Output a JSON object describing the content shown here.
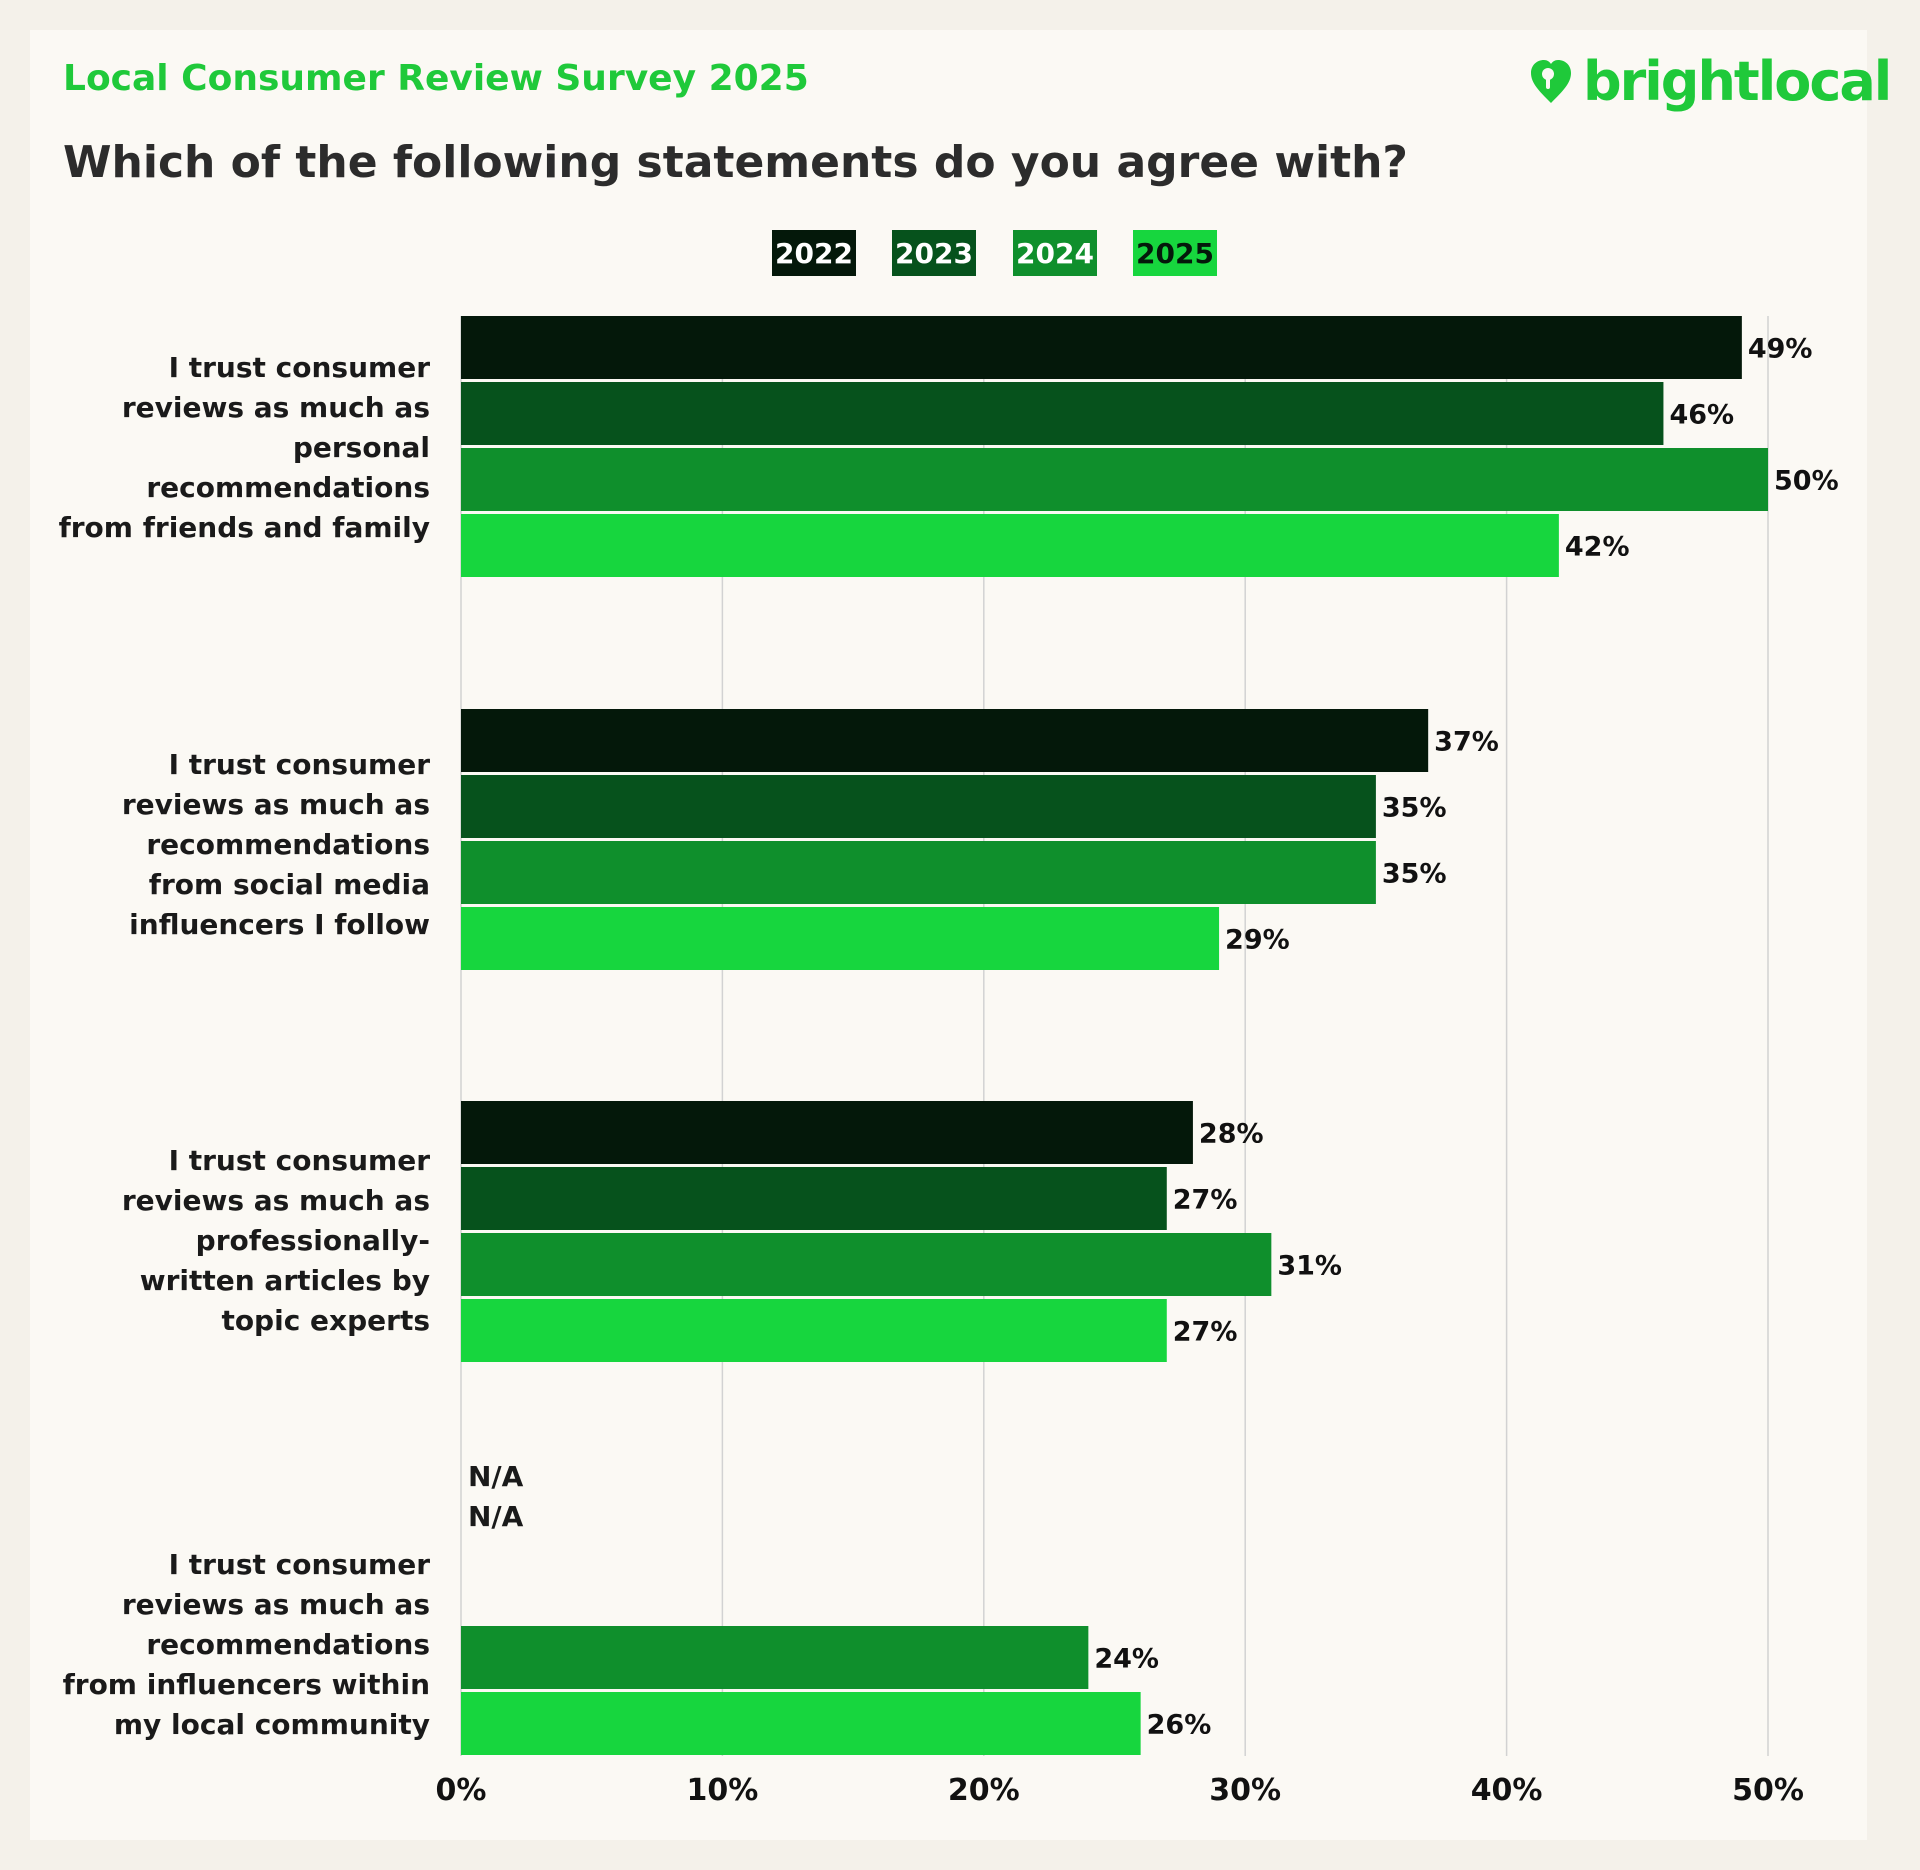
{
  "header": {
    "subtitle": "Local Consumer Review Survey 2025",
    "question": "Which of the following statements do you agree with?",
    "logo_text": "brightlocal"
  },
  "chart_data": {
    "type": "bar",
    "orientation": "horizontal",
    "title": "Which of the following statements do you agree with?",
    "categories": [
      "I trust consumer reviews as much as personal recommendations from friends and family",
      "I trust consumer reviews as much as recommendations from social media influencers I follow",
      "I trust consumer reviews as much as professionally-written articles by topic experts",
      "I trust consumer reviews as much as recommendations from influencers within my local community"
    ],
    "category_lines": [
      [
        "I trust consumer",
        "reviews as much as",
        "personal",
        "recommendations",
        "from friends and family"
      ],
      [
        "I trust consumer",
        "reviews as much as",
        "recommendations",
        "from social media",
        "influencers I follow"
      ],
      [
        "I trust consumer",
        "reviews as much as",
        "professionally-",
        "written articles by",
        "topic experts"
      ],
      [
        "I trust consumer",
        "reviews as much as",
        "recommendations",
        "from influencers within",
        "my local community"
      ]
    ],
    "series": [
      {
        "name": "2022",
        "color": "#04180a",
        "values": [
          49,
          37,
          28,
          null
        ],
        "labels": [
          "49%",
          "37%",
          "28%",
          "N/A"
        ]
      },
      {
        "name": "2023",
        "color": "#06521c",
        "values": [
          46,
          35,
          27,
          null
        ],
        "labels": [
          "46%",
          "35%",
          "27%",
          "N/A"
        ]
      },
      {
        "name": "2024",
        "color": "#0f8f2c",
        "values": [
          50,
          35,
          31,
          24
        ],
        "labels": [
          "50%",
          "35%",
          "31%",
          "24%"
        ]
      },
      {
        "name": "2025",
        "color": "#17d63e",
        "values": [
          42,
          29,
          27,
          26
        ],
        "labels": [
          "42%",
          "29%",
          "27%",
          "26%"
        ]
      }
    ],
    "xlim": [
      0,
      50
    ],
    "xticks": [
      "0%",
      "10%",
      "20%",
      "30%",
      "40%",
      "50%"
    ],
    "grid": true,
    "legend_position": "top-center"
  }
}
